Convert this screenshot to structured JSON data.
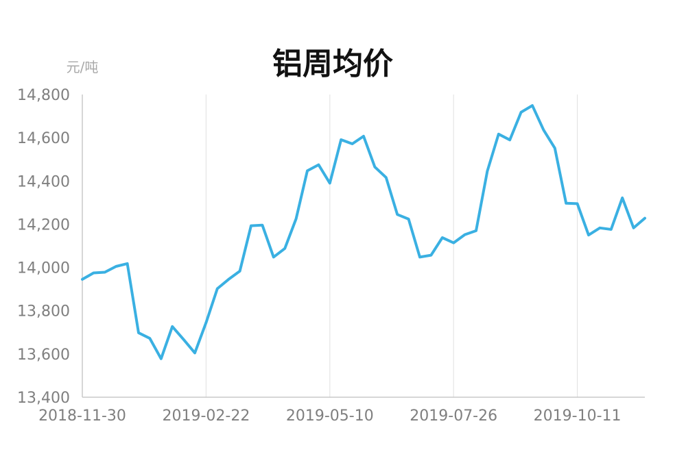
{
  "chart_data": {
    "type": "line",
    "title": "铝周均价",
    "ylabel": "元/吨",
    "xlabel": "",
    "ylim": [
      13400,
      14800
    ],
    "ytick_values": [
      13400,
      13600,
      13800,
      14000,
      14200,
      14400,
      14600,
      14800
    ],
    "ytick_labels": [
      "13,400",
      "13,600",
      "13,800",
      "14,000",
      "14,200",
      "14,400",
      "14,600",
      "14,800"
    ],
    "xtick_labels": [
      "2018-11-30",
      "2019-02-22",
      "2019-05-10",
      "2019-07-26",
      "2019-10-11"
    ],
    "xtick_indices": [
      0,
      11,
      22,
      33,
      44
    ],
    "grid": "vertical",
    "colors": {
      "line": "#3ab0e2"
    },
    "series": [
      {
        "values": [
          13945,
          13975,
          13978,
          14005,
          14018,
          13698,
          13672,
          13578,
          13727,
          13667,
          13605,
          13745,
          13902,
          13945,
          13983,
          14193,
          14196,
          14048,
          14088,
          14225,
          14447,
          14475,
          14390,
          14591,
          14572,
          14607,
          14465,
          14416,
          14245,
          14224,
          14048,
          14057,
          14138,
          14114,
          14152,
          14170,
          14446,
          14617,
          14590,
          14718,
          14749,
          14636,
          14552,
          14297,
          14295,
          14150,
          14183,
          14176,
          14322,
          14183,
          14228
        ]
      }
    ]
  }
}
